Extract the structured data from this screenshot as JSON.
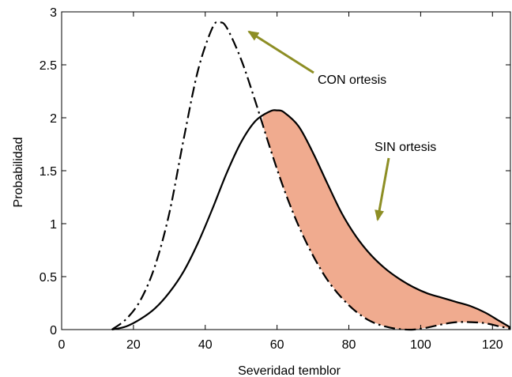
{
  "chart_data": {
    "type": "line",
    "title": "",
    "xlabel": "Severidad temblor",
    "ylabel": "Probabilidad",
    "xlim": [
      0,
      125
    ],
    "ylim": [
      0,
      3
    ],
    "grid": false,
    "x_ticks": [
      0,
      20,
      40,
      60,
      80,
      100,
      120
    ],
    "x_tick_labels": [
      "0",
      "20",
      "40",
      "60",
      "80",
      "100",
      "120"
    ],
    "y_ticks": [
      0,
      0.5,
      1,
      1.5,
      2,
      2.5,
      3
    ],
    "y_tick_labels": [
      "0",
      "0.5",
      "1",
      "1.5",
      "2",
      "2.5",
      "3"
    ],
    "series": [
      {
        "name": "CON ortesis",
        "line_style": "dash-dot",
        "color": "#000000",
        "x": [
          14,
          18,
          22,
          26,
          30,
          34,
          38,
          42,
          44,
          46,
          50,
          54,
          58,
          62,
          66,
          70,
          74,
          78,
          82,
          86,
          90,
          94,
          98,
          102,
          106,
          110,
          114,
          118,
          122,
          125
        ],
        "y": [
          0.0,
          0.1,
          0.28,
          0.6,
          1.1,
          1.8,
          2.45,
          2.85,
          2.9,
          2.85,
          2.55,
          2.15,
          1.72,
          1.32,
          0.98,
          0.7,
          0.47,
          0.3,
          0.17,
          0.08,
          0.03,
          0.005,
          0.0,
          0.02,
          0.05,
          0.07,
          0.07,
          0.06,
          0.03,
          0.01
        ]
      },
      {
        "name": "SIN ortesis",
        "line_style": "solid",
        "color": "#000000",
        "x": [
          14,
          18,
          22,
          26,
          30,
          34,
          38,
          42,
          46,
          50,
          54,
          58,
          60,
          62,
          66,
          70,
          74,
          78,
          82,
          86,
          90,
          94,
          98,
          102,
          106,
          110,
          114,
          118,
          122,
          125
        ],
        "y": [
          0.0,
          0.03,
          0.1,
          0.2,
          0.35,
          0.55,
          0.82,
          1.14,
          1.48,
          1.77,
          1.97,
          2.06,
          2.07,
          2.05,
          1.92,
          1.67,
          1.38,
          1.1,
          0.88,
          0.71,
          0.58,
          0.48,
          0.4,
          0.34,
          0.3,
          0.26,
          0.22,
          0.16,
          0.08,
          0.02
        ]
      }
    ],
    "fill_between": {
      "upper": "SIN ortesis",
      "lower": "CON ortesis",
      "x_start": 56,
      "x_end": 125,
      "color": "#f0ab8f"
    },
    "annotations": [
      {
        "text": "CON ortesis",
        "points_to": "CON ortesis peak",
        "arrow_color": "#8d8e24"
      },
      {
        "text": "SIN ortesis",
        "points_to": "SIN ortesis",
        "arrow_color": "#8d8e24"
      }
    ]
  }
}
